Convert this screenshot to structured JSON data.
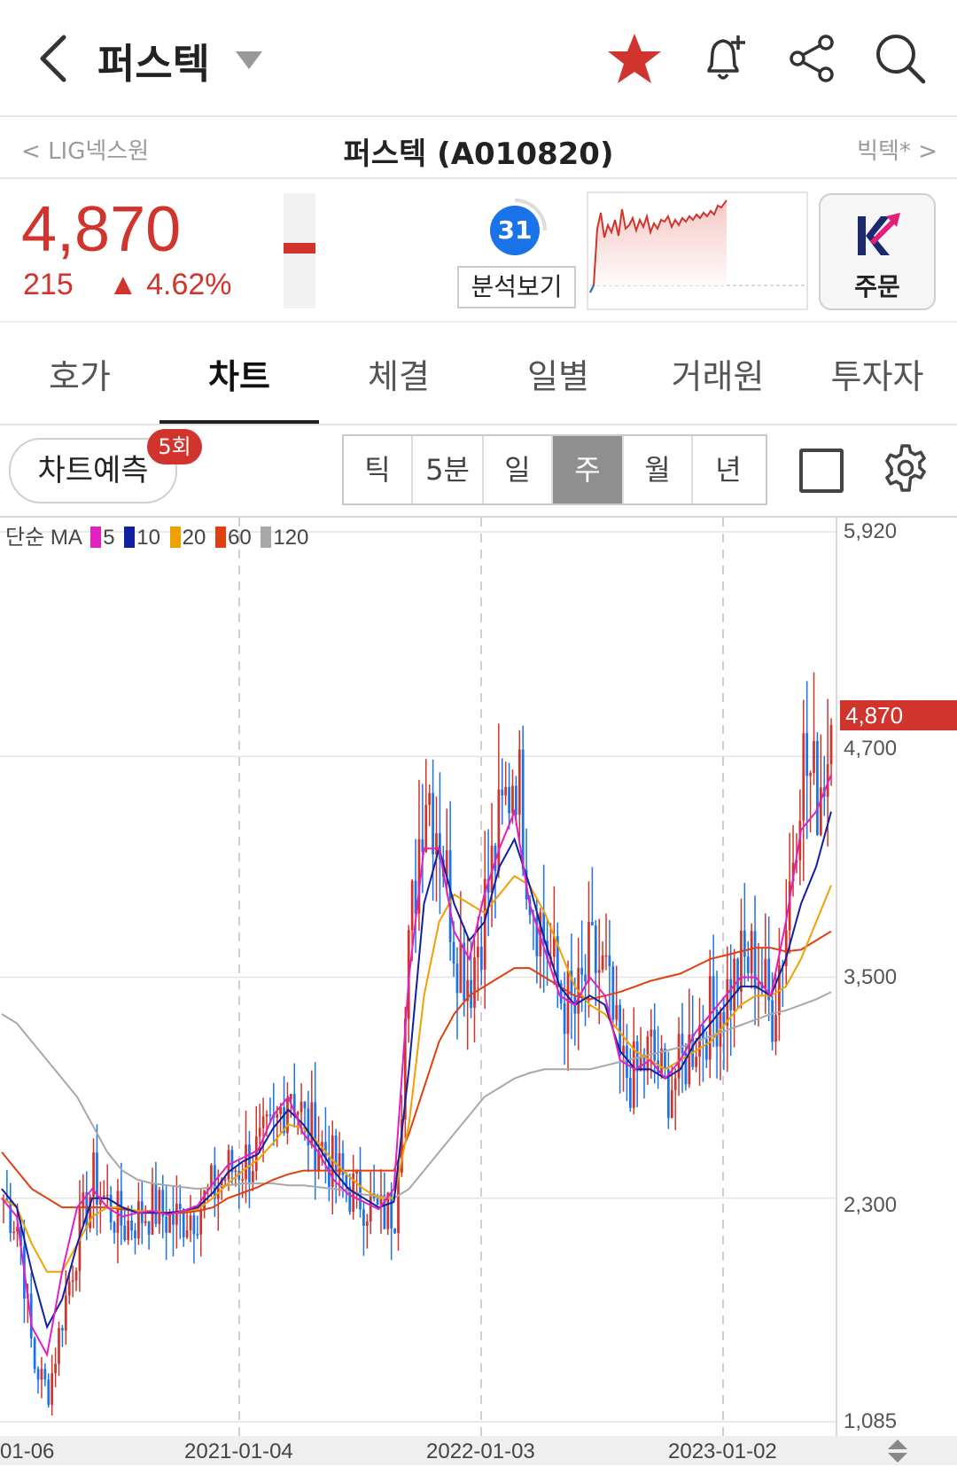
{
  "header": {
    "title": "퍼스텍"
  },
  "subheader": {
    "prev_stock": "LIG넥스원",
    "stock_name": "퍼스텍 (A010820)",
    "next_stock": "빅텍*"
  },
  "quote": {
    "price": "4,870",
    "change": "215",
    "change_pct": "4.62%",
    "color_up": "#d0342c",
    "score": "31",
    "analyze_label": "분석보기",
    "order_label": "주문",
    "order_logo": "K"
  },
  "tabs": [
    "호가",
    "차트",
    "체결",
    "일별",
    "거래원",
    "투자자"
  ],
  "active_tab": "차트",
  "controls": {
    "predict_label": "차트예측",
    "predict_badge": "5회",
    "periods": [
      "틱",
      "5분",
      "일",
      "주",
      "월",
      "년"
    ],
    "active_period": "주"
  },
  "chart_data": {
    "type": "candlestick",
    "legend": {
      "prefix": "단순 MA",
      "items": [
        {
          "label": "5",
          "color": "#e020c0"
        },
        {
          "label": "10",
          "color": "#1020a0"
        },
        {
          "label": "20",
          "color": "#f0a000"
        },
        {
          "label": "60",
          "color": "#e04010"
        },
        {
          "label": "120",
          "color": "#a8a8a8"
        }
      ]
    },
    "y_ticks": [
      "5,920",
      "4,700",
      "3,500",
      "2,300",
      "1,085"
    ],
    "y_tick_values": [
      5920,
      4700,
      3500,
      2300,
      1085
    ],
    "current_price_tag": "4,870",
    "current_price": 4870,
    "x_labels": [
      "01-06",
      "2021-01-04",
      "2022-01-03",
      "2023-01-02"
    ],
    "up_color": "#d0342c",
    "down_color": "#1a73e8",
    "close_path": [
      2300,
      2150,
      1400,
      1250,
      1700,
      2100,
      2400,
      2250,
      2150,
      2200,
      2250,
      2180,
      2200,
      2250,
      2350,
      2450,
      2500,
      2550,
      2650,
      2950,
      2700,
      2600,
      2450,
      2350,
      2300,
      2200,
      2250,
      3700,
      4600,
      4300,
      3700,
      3500,
      3900,
      4300,
      4700,
      4000,
      3700,
      3400,
      3300,
      3600,
      3500,
      3000,
      2950,
      3100,
      2900,
      3000,
      3200,
      3300,
      3400,
      3550,
      3600,
      3300,
      3800,
      4700,
      4500,
      4800
    ],
    "ma5": [
      2300,
      2200,
      1600,
      1450,
      1900,
      2250,
      2350,
      2250,
      2200,
      2220,
      2230,
      2210,
      2230,
      2260,
      2380,
      2480,
      2520,
      2560,
      2750,
      2850,
      2650,
      2550,
      2400,
      2320,
      2280,
      2240,
      2350,
      3500,
      4200,
      4200,
      3750,
      3600,
      3950,
      4200,
      4400,
      3900,
      3650,
      3400,
      3350,
      3500,
      3400,
      3050,
      3000,
      3050,
      2950,
      3050,
      3200,
      3300,
      3400,
      3500,
      3500,
      3400,
      3800,
      4300,
      4400,
      4600
    ],
    "ma10": [
      2350,
      2250,
      1900,
      1600,
      1750,
      2050,
      2300,
      2300,
      2250,
      2220,
      2220,
      2220,
      2230,
      2250,
      2330,
      2440,
      2500,
      2540,
      2680,
      2780,
      2700,
      2580,
      2450,
      2350,
      2300,
      2250,
      2280,
      3000,
      3900,
      4200,
      3900,
      3700,
      3800,
      4100,
      4250,
      4000,
      3700,
      3450,
      3350,
      3400,
      3350,
      3100,
      3000,
      3000,
      2950,
      3000,
      3150,
      3250,
      3350,
      3450,
      3450,
      3400,
      3600,
      3900,
      4100,
      4400
    ],
    "ma20": [
      2300,
      2250,
      2050,
      1900,
      1900,
      2050,
      2200,
      2250,
      2250,
      2230,
      2230,
      2220,
      2230,
      2240,
      2300,
      2380,
      2450,
      2510,
      2600,
      2700,
      2680,
      2600,
      2500,
      2420,
      2350,
      2300,
      2300,
      2700,
      3400,
      3800,
      3950,
      3900,
      3850,
      3950,
      4050,
      4000,
      3850,
      3650,
      3450,
      3350,
      3300,
      3200,
      3100,
      3050,
      3000,
      3050,
      3100,
      3150,
      3250,
      3350,
      3400,
      3400,
      3450,
      3600,
      3800,
      4000
    ],
    "ma60": [
      2550,
      2450,
      2350,
      2300,
      2250,
      2250,
      2250,
      2250,
      2240,
      2230,
      2230,
      2220,
      2220,
      2230,
      2250,
      2300,
      2330,
      2360,
      2400,
      2430,
      2450,
      2450,
      2450,
      2450,
      2450,
      2450,
      2450,
      2650,
      2900,
      3150,
      3300,
      3400,
      3450,
      3500,
      3550,
      3550,
      3500,
      3450,
      3400,
      3380,
      3400,
      3420,
      3450,
      3480,
      3500,
      3520,
      3560,
      3600,
      3620,
      3640,
      3660,
      3660,
      3640,
      3650,
      3700,
      3750
    ],
    "ma120": [
      3300,
      3250,
      3150,
      3050,
      2950,
      2850,
      2700,
      2550,
      2450,
      2400,
      2380,
      2370,
      2360,
      2350,
      2360,
      2370,
      2380,
      2380,
      2380,
      2370,
      2370,
      2360,
      2350,
      2340,
      2320,
      2310,
      2300,
      2350,
      2450,
      2550,
      2650,
      2750,
      2850,
      2900,
      2950,
      2980,
      3000,
      3000,
      3000,
      3000,
      3020,
      3040,
      3060,
      3080,
      3100,
      3120,
      3150,
      3180,
      3210,
      3240,
      3270,
      3300,
      3320,
      3350,
      3380,
      3420
    ]
  }
}
